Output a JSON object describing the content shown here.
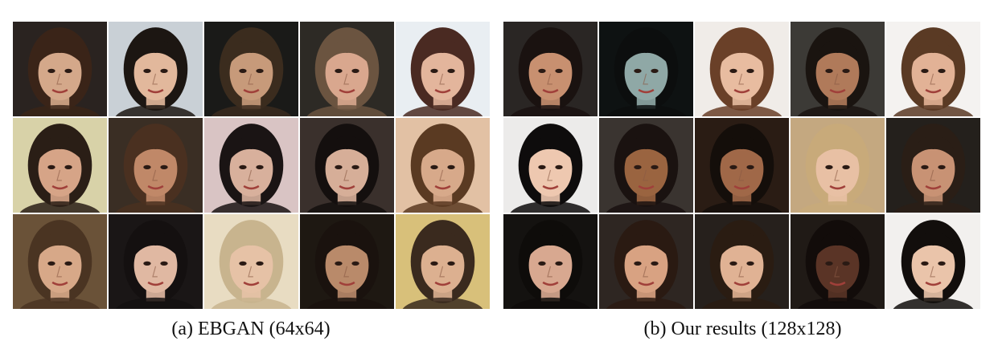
{
  "panels": [
    {
      "id": "a",
      "caption": "(a) EBGAN (64x64)",
      "tiles": [
        {
          "bg": "#2a2320",
          "skin": "#d4a88a",
          "hair": "#3a2418"
        },
        {
          "bg": "#c9d0d6",
          "skin": "#e2b89c",
          "hair": "#1c1612"
        },
        {
          "bg": "#1a1a18",
          "skin": "#c79a7a",
          "hair": "#3b2c1e"
        },
        {
          "bg": "#2d2a25",
          "skin": "#d9a78e",
          "hair": "#6b5440"
        },
        {
          "bg": "#e9eef2",
          "skin": "#e3b59c",
          "hair": "#4a2a22"
        },
        {
          "bg": "#d8d2a8",
          "skin": "#d6a487",
          "hair": "#2a1e16"
        },
        {
          "bg": "#3a2e24",
          "skin": "#c08868",
          "hair": "#4a3020"
        },
        {
          "bg": "#d9c4c4",
          "skin": "#d8b09c",
          "hair": "#1a1414"
        },
        {
          "bg": "#3a302c",
          "skin": "#d6ae98",
          "hair": "#140f0e"
        },
        {
          "bg": "#e2c1a4",
          "skin": "#d7a98a",
          "hair": "#5a3a22"
        },
        {
          "bg": "#6a5238",
          "skin": "#d7a888",
          "hair": "#4a3422"
        },
        {
          "bg": "#1a1616",
          "skin": "#e0b8a2",
          "hair": "#141010"
        },
        {
          "bg": "#e8dcc2",
          "skin": "#e6c2a6",
          "hair": "#c8b48e"
        },
        {
          "bg": "#1e1812",
          "skin": "#b98a6a",
          "hair": "#1a120e"
        },
        {
          "bg": "#d8c07a",
          "skin": "#dcb090",
          "hair": "#3a2a1e"
        }
      ]
    },
    {
      "id": "b",
      "caption": "(b) Our results (128x128)",
      "tiles": [
        {
          "bg": "#2a2624",
          "skin": "#c89070",
          "hair": "#1a1210"
        },
        {
          "bg": "#0e1212",
          "skin": "#8fa8a6",
          "hair": "#0c0e0e"
        },
        {
          "bg": "#f0ece8",
          "skin": "#e8bca0",
          "hair": "#6a4028"
        },
        {
          "bg": "#3c3a36",
          "skin": "#b07a5a",
          "hair": "#1a1410"
        },
        {
          "bg": "#f4f2f0",
          "skin": "#e2b296",
          "hair": "#5a3a24"
        },
        {
          "bg": "#ecebea",
          "skin": "#eec8b0",
          "hair": "#0e0c0c"
        },
        {
          "bg": "#3a3430",
          "skin": "#9a6440",
          "hair": "#1a1210"
        },
        {
          "bg": "#2a1c14",
          "skin": "#a06848",
          "hair": "#140e0a"
        },
        {
          "bg": "#c4a880",
          "skin": "#e8c0a4",
          "hair": "#c8aa7a"
        },
        {
          "bg": "#24201c",
          "skin": "#c89274",
          "hair": "#2a1e16"
        },
        {
          "bg": "#141210",
          "skin": "#d8a890",
          "hair": "#0e0c0a"
        },
        {
          "bg": "#2e2622",
          "skin": "#d8a282",
          "hair": "#2a1a12"
        },
        {
          "bg": "#26201c",
          "skin": "#e0b294",
          "hair": "#2a1c12"
        },
        {
          "bg": "#201a16",
          "skin": "#5a3426",
          "hair": "#120c0a"
        },
        {
          "bg": "#f2f0ee",
          "skin": "#eac4aa",
          "hair": "#120e0c"
        }
      ]
    }
  ]
}
